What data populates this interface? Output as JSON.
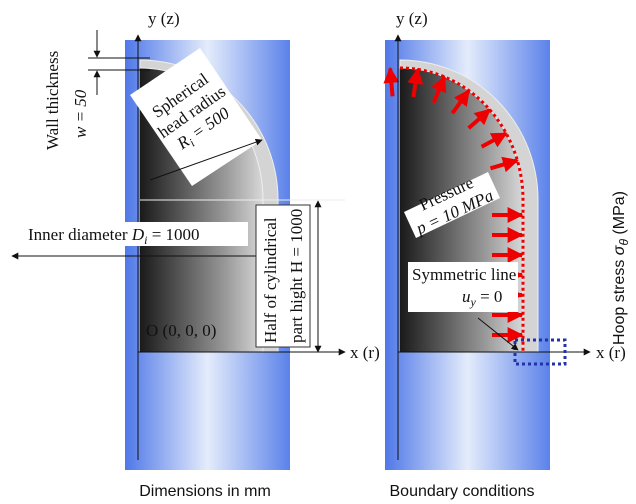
{
  "left_panel": {
    "y_axis_label": "y (z)",
    "x_axis_label": "x (r)",
    "wall_thickness": "Wall thickness",
    "wall_value": "w = 50",
    "sphere": [
      "Spherical",
      "head radius"
    ],
    "radius": {
      "symbol": "R",
      "sub": "i",
      "value": " = 500"
    },
    "diameter": {
      "text": "Inner diameter ",
      "symbol": "D",
      "sub": "i",
      "value": " = 1000"
    },
    "height": [
      "Half of cylindrical",
      "part hight H = 1000"
    ],
    "origin": "O (0, 0, 0)",
    "caption": "Dimensions in mm"
  },
  "right_panel": {
    "y_axis_label": "y (z)",
    "x_axis_label": "x (r)",
    "pressure": [
      "Pressure",
      "p = 10 MPa"
    ],
    "symmetric": "Symmetric line",
    "bc": {
      "symbol": "u",
      "sub": "y",
      "value": " = 0"
    },
    "caption": "Boundary conditions"
  },
  "side_label": {
    "text": "Hoop stress ",
    "symbol": "σ",
    "sub": "θ",
    "value": " (MPa)"
  }
}
